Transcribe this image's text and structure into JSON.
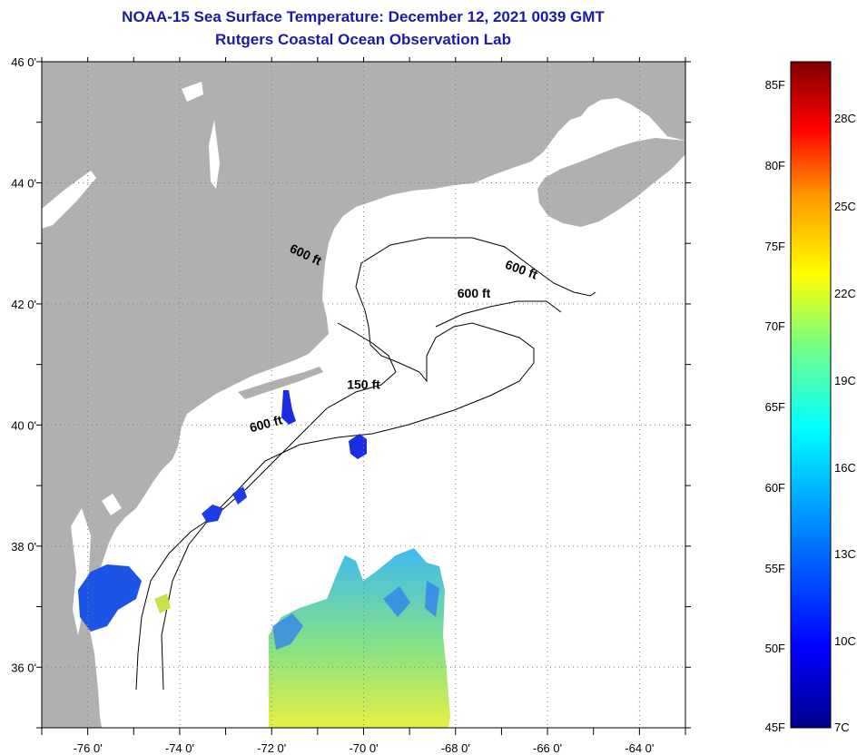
{
  "header": {
    "title": "NOAA-15 Sea Surface Temperature:  December 12, 2021 0039 GMT",
    "subtitle": "Rutgers Coastal Ocean Observation Lab"
  },
  "map": {
    "lon_ticks": [
      "-76 0'",
      "-74 0'",
      "-72 0'",
      "-70 0'",
      "-68 0'",
      "-66 0'",
      "-64 0'"
    ],
    "lat_ticks": [
      "46 0'",
      "44 0'",
      "42 0'",
      "40 0'",
      "38 0'",
      "36 0'"
    ],
    "lon_range": [
      -77.0,
      -63.0
    ],
    "lat_range": [
      35.0,
      46.0
    ],
    "contour_labels": [
      {
        "text": "600 ft",
        "lon": -71.3,
        "lat": 42.75
      },
      {
        "text": "600 ft",
        "lon": -66.6,
        "lat": 42.5
      },
      {
        "text": "600 ft",
        "lon": -67.6,
        "lat": 42.1
      },
      {
        "text": "150 ft",
        "lon": -70.0,
        "lat": 40.6
      },
      {
        "text": "600 ft",
        "lon": -72.1,
        "lat": 39.95
      }
    ],
    "colors": {
      "land": "#b0b0b0",
      "ocean": "#ffffff",
      "grid": "#808080"
    }
  },
  "colorbar": {
    "fahrenheit_labels": [
      "85F",
      "80F",
      "75F",
      "70F",
      "65F",
      "60F",
      "55F",
      "50F",
      "45F"
    ],
    "celsius_labels": [
      "28C",
      "25C",
      "22C",
      "19C",
      "16C",
      "13C",
      "10C",
      "7C"
    ]
  }
}
